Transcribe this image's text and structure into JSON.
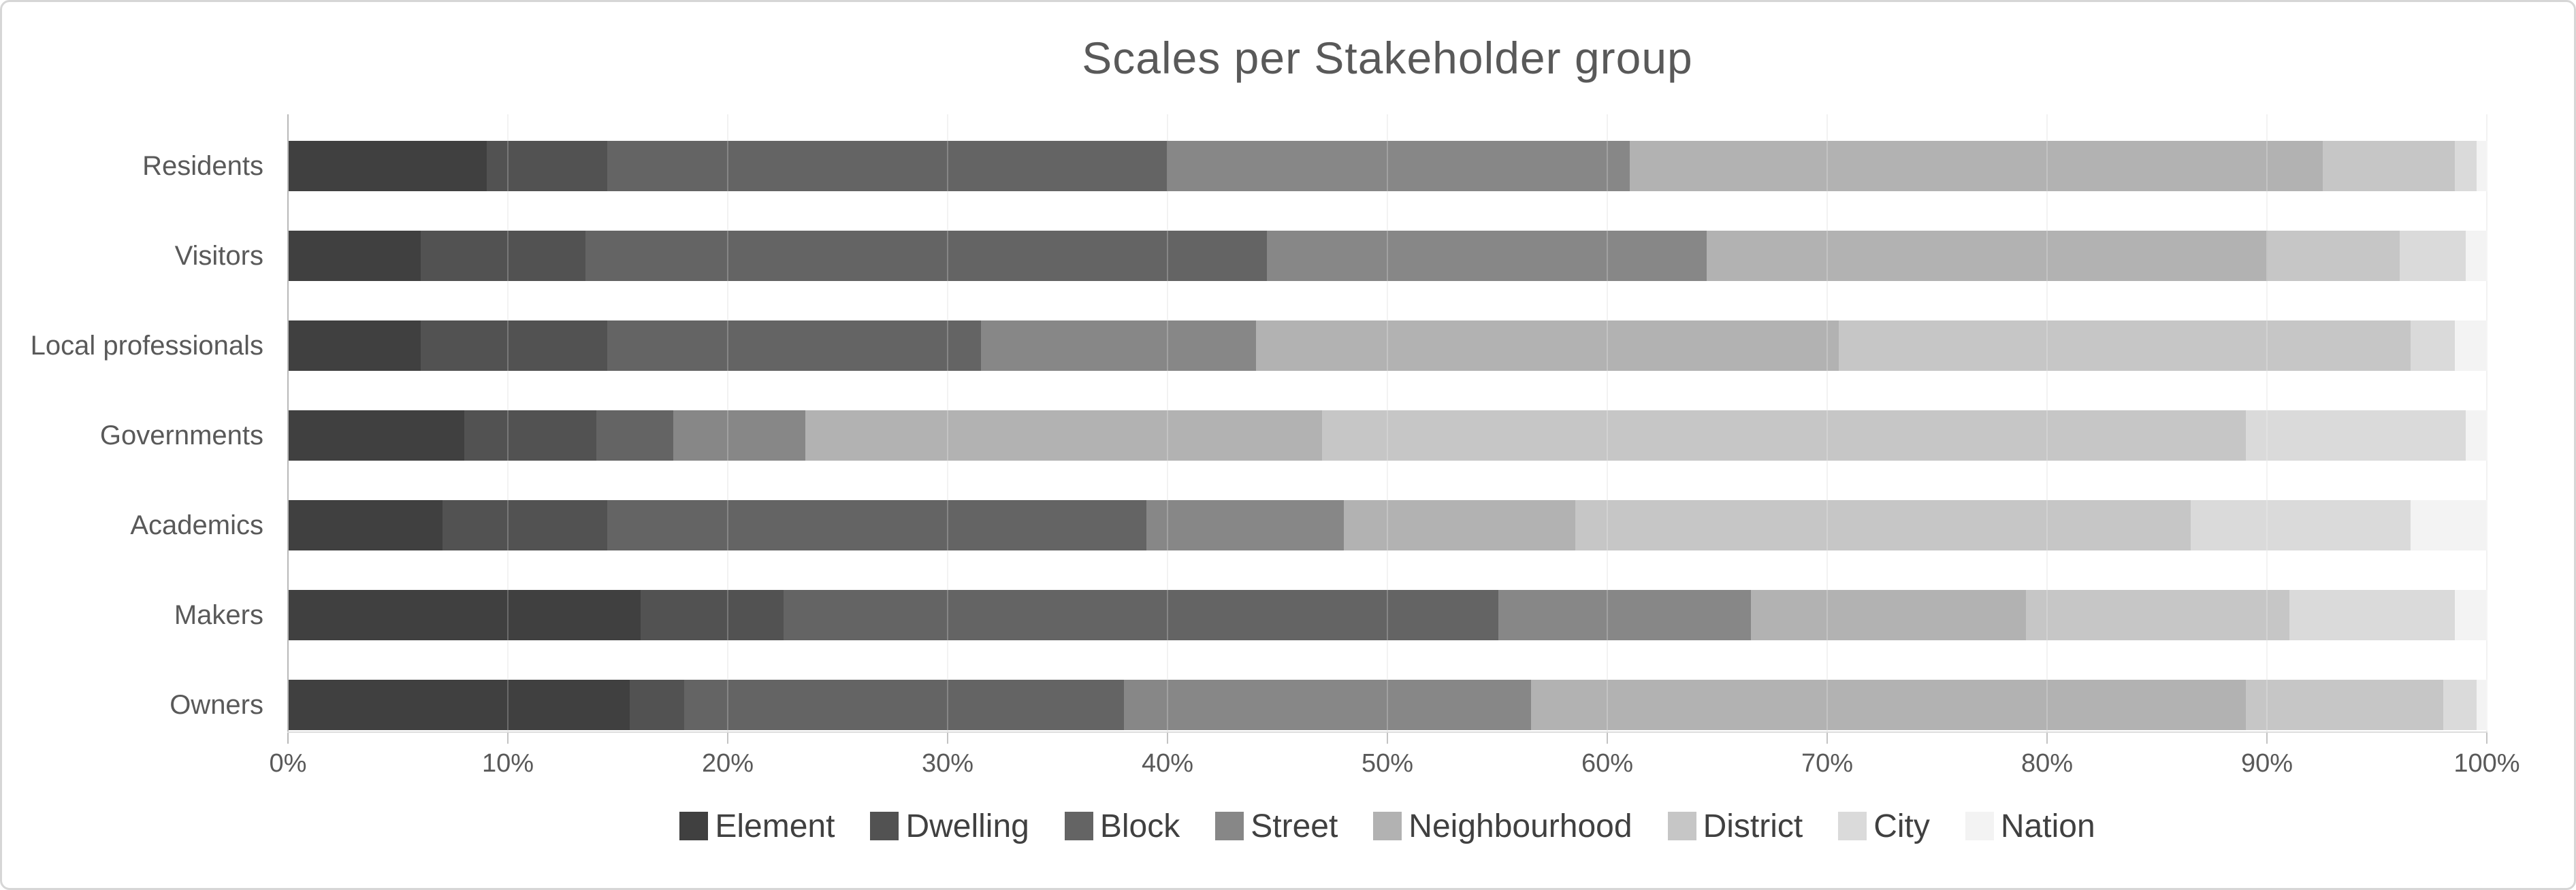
{
  "chart_data": {
    "type": "bar",
    "orientation": "horizontal",
    "stacked": true,
    "title": "Scales per Stakeholder group",
    "categories": [
      "Residents",
      "Visitors",
      "Local professionals",
      "Governments",
      "Academics",
      "Makers",
      "Owners"
    ],
    "series": [
      {
        "name": "Element",
        "color": "#404040",
        "values": [
          9,
          6,
          6,
          8,
          7,
          16,
          15.5
        ]
      },
      {
        "name": "Dwelling",
        "color": "#525252",
        "values": [
          5.5,
          7.5,
          8.5,
          6,
          7.5,
          6.5,
          2.5
        ]
      },
      {
        "name": "Block",
        "color": "#646464",
        "values": [
          25.5,
          31,
          17,
          3.5,
          24.5,
          32.5,
          20
        ]
      },
      {
        "name": "Street",
        "color": "#878787",
        "values": [
          21,
          20,
          12.5,
          6,
          9,
          11.5,
          18.5
        ]
      },
      {
        "name": "Neighbourhood",
        "color": "#b2b2b2",
        "values": [
          31.5,
          25.5,
          26.5,
          23.5,
          10.5,
          12.5,
          32.5
        ]
      },
      {
        "name": "District",
        "color": "#c6c6c6",
        "values": [
          6,
          6,
          26,
          42,
          28,
          12,
          9
        ]
      },
      {
        "name": "City",
        "color": "#dadada",
        "values": [
          1,
          3,
          2,
          10,
          10,
          7.5,
          1.5
        ]
      },
      {
        "name": "Nation",
        "color": "#f3f3f3",
        "values": [
          0.5,
          1,
          1.5,
          1,
          3.5,
          1.5,
          0.5
        ]
      }
    ],
    "x_ticks": [
      "0%",
      "10%",
      "20%",
      "30%",
      "40%",
      "50%",
      "60%",
      "70%",
      "80%",
      "90%",
      "100%"
    ],
    "xlim": [
      0,
      100
    ],
    "grid": true,
    "legend_position": "bottom"
  },
  "colors": {
    "title_text": "#595959",
    "axis_text": "#595959",
    "legend_text": "#404040",
    "frame_border": "#d6d6d6",
    "gridline": "#efefef",
    "background": "#ffffff"
  }
}
